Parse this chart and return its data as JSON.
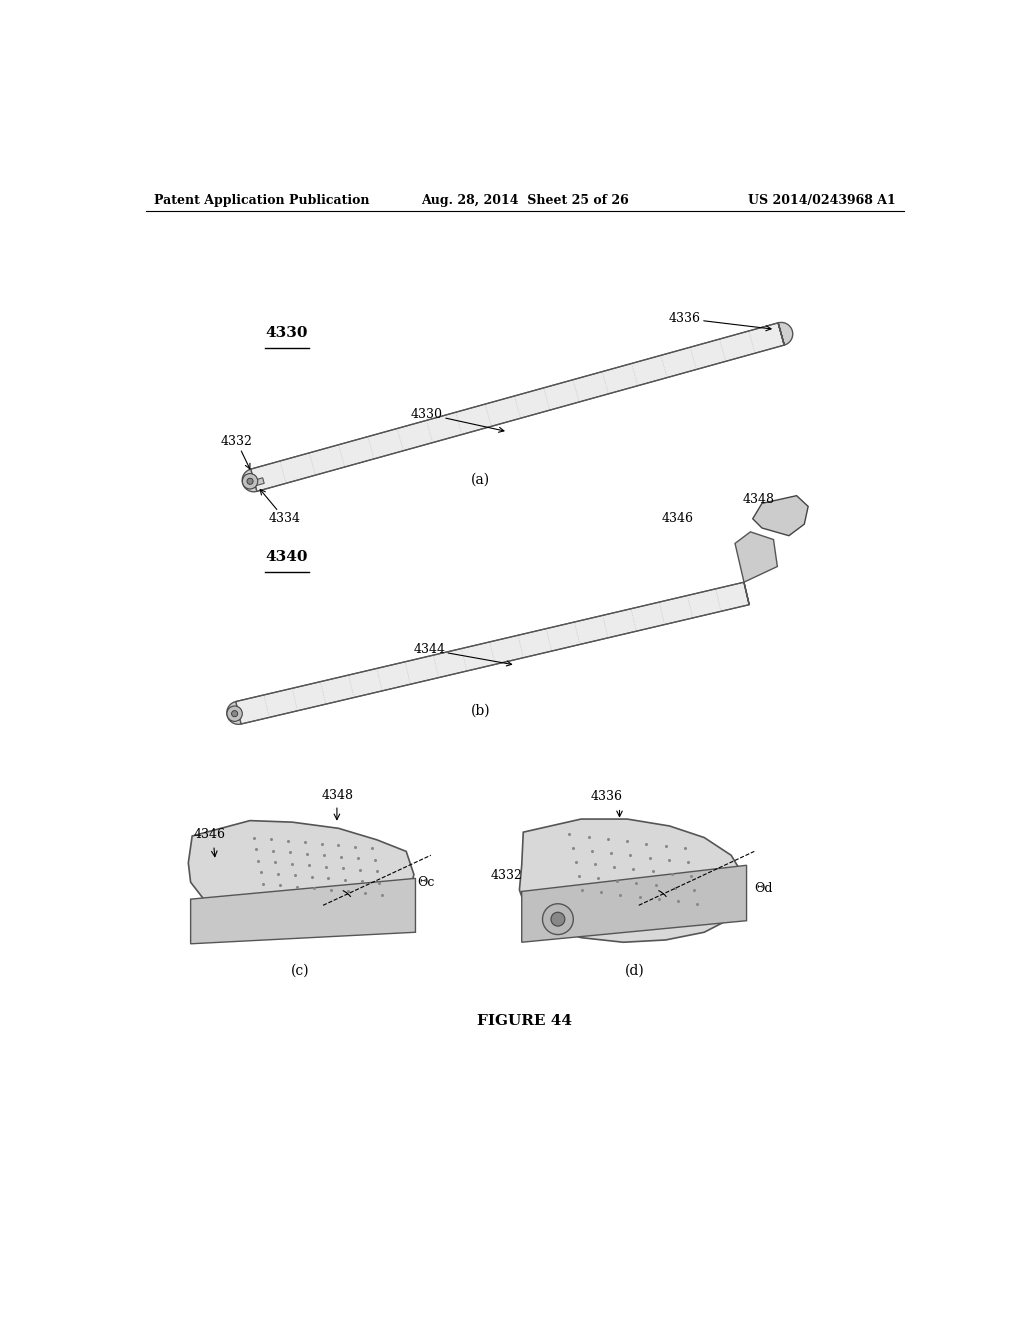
{
  "background_color": "#ffffff",
  "header_left": "Patent Application Publication",
  "header_center": "Aug. 28, 2014  Sheet 25 of 26",
  "header_right": "US 2014/0243968 A1",
  "figure_caption": "FIGURE 44",
  "subfig_a_label": "(a)",
  "subfig_b_label": "(b)",
  "subfig_c_label": "(c)",
  "subfig_d_label": "(d)",
  "labels": {
    "4330_title": "4330",
    "4330_body": "4330",
    "4332": "4332",
    "4334": "4334",
    "4336": "4336",
    "4340": "4340",
    "4344": "4344",
    "4346_a": "4346",
    "4348_a": "4348",
    "4346_c": "4346",
    "4348_c": "4348",
    "theta_c": "Θc",
    "4336_d": "4336",
    "4332_d": "4332",
    "theta_d": "Θd"
  },
  "text_color": "#000000",
  "line_color": "#000000",
  "gray_color": "#aaaaaa",
  "light_gray": "#cccccc",
  "dark_gray": "#666666"
}
